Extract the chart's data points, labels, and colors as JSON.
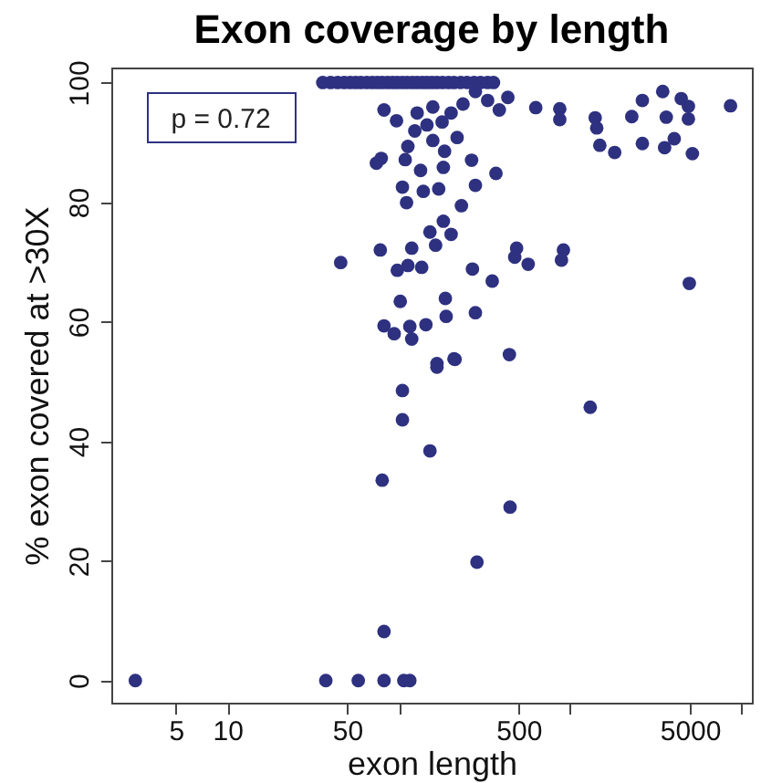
{
  "chart_data": {
    "type": "scatter",
    "title": "Exon coverage by length",
    "xlabel": "exon length",
    "ylabel": "% exon covered at >30X",
    "annotations": [
      "p = 0.72"
    ],
    "log": "x",
    "grid": false,
    "marker": "circle",
    "xlim": [
      2.1,
      11500
    ],
    "ylim": [
      -3.7,
      102.5
    ],
    "xticks": [
      5,
      10,
      50,
      {
        "value": 100,
        "label": null
      },
      500,
      {
        "value": 1000,
        "label": null
      },
      5000,
      {
        "value": 10000,
        "label": null
      }
    ],
    "yticks": [
      0,
      20,
      40,
      60,
      80,
      100
    ],
    "series": [
      {
        "color": "#2e3180",
        "x": [
          2.9,
          37.5,
          58,
          82,
          107,
          116,
          82,
          286,
          446,
          80,
          152,
          105,
          1310,
          105,
          167,
          213,
          8630,
          3470,
          2640,
          4450,
          4900,
          3640,
          4900,
          2290,
          1400,
          1430,
          870,
          870,
          630,
          1490,
          1820,
          2640,
          3560,
          4050,
          5170,
          4960,
          914,
          890,
          487,
          475,
          569,
          351,
          269,
          280,
          187,
          189,
          442,
          210,
          167,
          45.8,
          78,
          119,
          164,
          98,
          113,
          136,
          152,
          182,
          202,
          232,
          102,
          82,
          94,
          116,
          144,
          119,
          111,
          105,
          139,
          171,
          280,
          369,
          266,
          182,
          134,
          109,
          74,
          79,
          113,
          158,
          219,
          185,
          124,
          146,
          179,
          97,
          82,
          128,
          158,
          237,
          330,
          386,
          433,
          280,
          202,
          36,
          40,
          44,
          48,
          52,
          56,
          60,
          65,
          70,
          75,
          80,
          86,
          92,
          98,
          105,
          112,
          120,
          128,
          137,
          146,
          156,
          167,
          180,
          195,
          210,
          230,
          250,
          275,
          300,
          330,
          357
        ],
        "values": [
          0,
          0,
          0,
          0,
          0,
          0,
          8.2,
          19.8,
          29,
          33.5,
          38.4,
          43.6,
          45.7,
          48.5,
          52.4,
          53.7,
          96.1,
          98.5,
          97,
          97.3,
          96,
          94.2,
          93.9,
          94.3,
          94.1,
          92.4,
          95.6,
          93.8,
          95.8,
          89.5,
          88.3,
          89.8,
          89.1,
          90.6,
          88.1,
          66.4,
          72,
          70.3,
          72.3,
          70.8,
          69.6,
          66.8,
          68.8,
          61.5,
          63.9,
          60.9,
          54.5,
          53.8,
          53,
          69.9,
          72,
          72.3,
          72.8,
          68.6,
          69.4,
          69.1,
          75,
          76.8,
          74.6,
          79.4,
          63.4,
          59.3,
          58,
          59.2,
          59.5,
          57.1,
          79.9,
          82.5,
          81.8,
          82.2,
          82.8,
          84.8,
          87,
          85.8,
          85.3,
          87.1,
          86.5,
          87.3,
          89.3,
          90.3,
          90.8,
          88.5,
          91.9,
          92.9,
          93.4,
          93.6,
          95.4,
          94.9,
          95.9,
          96.4,
          97,
          95.4,
          97.5,
          98.5,
          94.9,
          100,
          100,
          100,
          100,
          100,
          100,
          100,
          100,
          100,
          100,
          100,
          100,
          100,
          100,
          100,
          100,
          100,
          100,
          100,
          100,
          100,
          100,
          100,
          100,
          100,
          100,
          100,
          100,
          100,
          100,
          100
        ]
      }
    ]
  }
}
